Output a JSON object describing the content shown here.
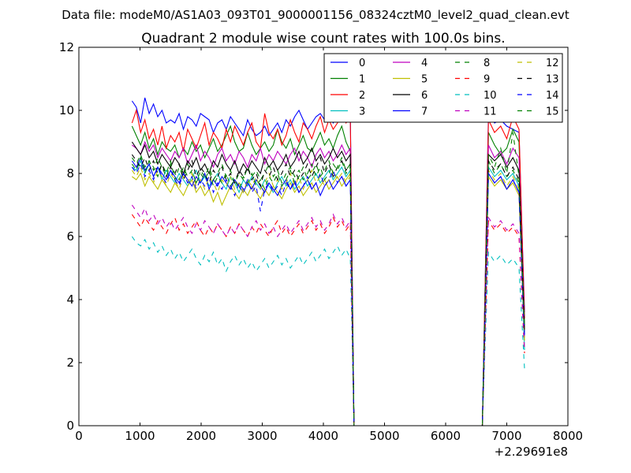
{
  "chart_data": {
    "type": "line",
    "suptitle": "Data file: modeM0/AS1A03_093T01_9000001156_08324cztM0_level2_quad_clean.evt",
    "title": "Quadrant 2 module wise count rates with 100.0s bins.",
    "xlabel": "",
    "ylabel": "",
    "x_offset_label": "+2.29691e8",
    "xlim": [
      0,
      8000
    ],
    "ylim": [
      0,
      12
    ],
    "xticks": [
      0,
      1000,
      2000,
      3000,
      4000,
      5000,
      6000,
      7000,
      8000
    ],
    "yticks": [
      0,
      2,
      4,
      6,
      8,
      10,
      12
    ],
    "grid": false,
    "legend_position": "top-right",
    "x": [
      870,
      940,
      1010,
      1080,
      1150,
      1220,
      1290,
      1360,
      1430,
      1500,
      1570,
      1640,
      1710,
      1780,
      1850,
      1920,
      1990,
      2060,
      2130,
      2200,
      2270,
      2340,
      2410,
      2480,
      2550,
      2620,
      2690,
      2760,
      2830,
      2900,
      2970,
      3040,
      3110,
      3180,
      3250,
      3320,
      3390,
      3460,
      3530,
      3600,
      3670,
      3740,
      3810,
      3880,
      3950,
      4020,
      4090,
      4160,
      4230,
      4300,
      4370,
      4440,
      4500,
      6600,
      6700,
      6800,
      6900,
      7000,
      7100,
      7200,
      7290
    ],
    "series": [
      {
        "name": "0",
        "color": "#0000ff",
        "dash": "solid",
        "values": [
          10.3,
          10.1,
          9.6,
          10.4,
          9.9,
          10.2,
          9.8,
          10.0,
          9.6,
          9.7,
          9.6,
          9.9,
          9.4,
          9.8,
          9.7,
          9.5,
          9.9,
          9.8,
          9.7,
          9.3,
          9.6,
          9.7,
          9.4,
          9.8,
          9.6,
          9.4,
          9.2,
          9.7,
          9.4,
          9.2,
          9.3,
          9.5,
          9.2,
          9.4,
          9.6,
          9.3,
          9.7,
          9.5,
          9.8,
          10.0,
          9.7,
          9.4,
          9.6,
          9.8,
          9.9,
          9.7,
          9.9,
          9.6,
          9.8,
          10.0,
          9.9,
          10.0,
          0,
          0,
          9.9,
          9.6,
          9.7,
          9.5,
          9.4,
          9.3,
          3.6
        ]
      },
      {
        "name": "1",
        "color": "#008000",
        "dash": "solid",
        "values": [
          9.5,
          9.2,
          8.9,
          9.3,
          8.8,
          9.1,
          8.6,
          9.0,
          8.8,
          8.7,
          8.9,
          8.5,
          8.8,
          8.6,
          9.0,
          8.7,
          8.9,
          8.5,
          8.8,
          9.1,
          8.7,
          8.9,
          9.2,
          9.5,
          9.0,
          8.7,
          8.8,
          9.3,
          8.9,
          8.6,
          8.8,
          9.0,
          8.7,
          8.9,
          9.4,
          9.0,
          8.8,
          9.1,
          8.6,
          8.9,
          9.2,
          8.8,
          8.7,
          9.0,
          9.3,
          8.9,
          9.1,
          8.8,
          9.2,
          9.5,
          9.0,
          8.7,
          0,
          0,
          9.3,
          8.9,
          8.6,
          8.8,
          9.4,
          9.0,
          3.2
        ]
      },
      {
        "name": "2",
        "color": "#ff0000",
        "dash": "solid",
        "values": [
          9.6,
          10.0,
          9.3,
          9.7,
          9.1,
          9.4,
          8.9,
          9.5,
          8.8,
          9.2,
          9.0,
          9.3,
          8.7,
          9.4,
          9.1,
          8.8,
          9.2,
          9.6,
          8.9,
          9.3,
          9.1,
          8.8,
          9.4,
          9.0,
          9.5,
          9.2,
          8.9,
          9.3,
          9.6,
          9.0,
          8.8,
          9.9,
          9.3,
          9.1,
          9.4,
          8.9,
          9.2,
          9.7,
          9.3,
          9.0,
          9.6,
          9.4,
          9.1,
          9.5,
          9.8,
          9.3,
          9.7,
          9.4,
          9.6,
          9.9,
          9.6,
          9.8,
          0,
          0,
          9.7,
          9.3,
          9.5,
          9.1,
          9.8,
          9.4,
          3.4
        ]
      },
      {
        "name": "3",
        "color": "#00bfbf",
        "dash": "solid",
        "values": [
          8.2,
          8.1,
          8.4,
          8.0,
          8.3,
          7.9,
          8.2,
          7.8,
          8.1,
          7.9,
          7.7,
          8.0,
          7.8,
          7.6,
          7.9,
          8.1,
          7.7,
          7.9,
          7.6,
          7.8,
          8.0,
          7.7,
          7.5,
          7.9,
          7.7,
          7.4,
          7.8,
          7.6,
          7.9,
          7.7,
          7.5,
          7.8,
          7.6,
          7.4,
          7.7,
          7.9,
          7.6,
          7.8,
          7.5,
          7.7,
          7.9,
          7.6,
          7.8,
          8.0,
          7.7,
          7.9,
          8.1,
          7.8,
          8.0,
          8.2,
          7.9,
          8.1,
          0,
          0,
          8.2,
          7.9,
          8.1,
          7.8,
          8.0,
          7.6,
          2.4
        ]
      },
      {
        "name": "4",
        "color": "#bf00bf",
        "dash": "solid",
        "values": [
          8.9,
          8.8,
          8.6,
          9.0,
          8.7,
          8.9,
          8.5,
          8.8,
          8.6,
          8.4,
          8.7,
          8.5,
          8.8,
          8.3,
          8.6,
          8.9,
          8.4,
          8.7,
          8.5,
          8.2,
          8.6,
          8.8,
          8.4,
          8.6,
          8.3,
          8.7,
          8.5,
          8.2,
          8.6,
          8.4,
          8.8,
          8.3,
          8.6,
          8.4,
          8.7,
          8.5,
          8.3,
          8.6,
          8.8,
          8.4,
          8.7,
          8.5,
          8.2,
          8.6,
          8.8,
          8.5,
          8.7,
          8.4,
          8.6,
          8.9,
          8.6,
          8.8,
          0,
          0,
          8.9,
          8.5,
          8.7,
          8.3,
          8.8,
          8.5,
          2.9
        ]
      },
      {
        "name": "5",
        "color": "#bfbf00",
        "dash": "solid",
        "values": [
          7.9,
          7.8,
          8.0,
          7.6,
          7.9,
          7.7,
          7.5,
          7.8,
          7.6,
          7.4,
          7.7,
          7.5,
          7.3,
          7.6,
          7.8,
          7.4,
          7.6,
          7.3,
          7.5,
          7.1,
          7.4,
          7.0,
          7.3,
          7.6,
          7.4,
          7.2,
          7.5,
          7.3,
          7.6,
          7.4,
          7.2,
          7.5,
          7.3,
          7.6,
          7.4,
          7.2,
          7.5,
          7.7,
          7.4,
          7.6,
          7.3,
          7.5,
          7.7,
          7.4,
          7.6,
          7.8,
          7.5,
          7.7,
          7.9,
          7.6,
          7.8,
          8.0,
          0,
          0,
          7.9,
          7.6,
          7.8,
          7.5,
          7.7,
          7.3,
          2.7
        ]
      },
      {
        "name": "6",
        "color": "#000000",
        "dash": "solid",
        "values": [
          9.0,
          8.8,
          8.6,
          8.9,
          8.5,
          8.7,
          8.3,
          8.6,
          8.4,
          8.2,
          8.5,
          8.3,
          8.0,
          8.4,
          8.2,
          8.5,
          8.1,
          8.3,
          8.0,
          8.4,
          8.2,
          8.6,
          8.3,
          8.1,
          8.4,
          8.0,
          8.3,
          8.1,
          8.4,
          8.2,
          8.0,
          8.5,
          8.2,
          8.4,
          8.1,
          8.3,
          8.6,
          8.2,
          8.4,
          8.7,
          8.3,
          8.5,
          8.8,
          8.4,
          8.6,
          8.3,
          8.5,
          8.8,
          8.5,
          8.7,
          8.4,
          8.6,
          0,
          0,
          8.6,
          8.4,
          8.6,
          8.2,
          8.5,
          8.1,
          3.0
        ]
      },
      {
        "name": "7",
        "color": "#0000ff",
        "dash": "solid",
        "values": [
          8.4,
          8.2,
          8.5,
          8.1,
          8.3,
          7.9,
          8.2,
          8.0,
          7.8,
          8.1,
          7.9,
          7.7,
          8.0,
          7.8,
          7.6,
          7.9,
          7.7,
          8.0,
          7.5,
          7.8,
          7.6,
          7.9,
          7.7,
          7.5,
          7.8,
          7.6,
          7.4,
          7.7,
          7.5,
          7.8,
          7.6,
          7.4,
          7.7,
          7.5,
          7.3,
          7.6,
          7.8,
          7.5,
          7.7,
          7.4,
          7.6,
          7.8,
          7.5,
          7.7,
          7.3,
          7.6,
          7.8,
          7.5,
          7.7,
          7.9,
          7.6,
          7.8,
          0,
          0,
          8.0,
          7.7,
          7.9,
          7.5,
          7.8,
          7.4,
          2.8
        ]
      },
      {
        "name": "8",
        "color": "#008000",
        "dash": "dashed",
        "values": [
          8.3,
          8.1,
          8.5,
          8.0,
          8.4,
          8.2,
          7.9,
          8.3,
          8.0,
          8.4,
          7.8,
          8.2,
          7.9,
          8.3,
          8.0,
          7.7,
          8.1,
          7.9,
          8.2,
          7.8,
          8.0,
          8.3,
          7.9,
          8.1,
          7.7,
          8.0,
          7.8,
          8.2,
          7.9,
          8.1,
          7.8,
          8.0,
          8.3,
          7.9,
          8.1,
          7.7,
          8.0,
          8.2,
          7.9,
          8.1,
          7.8,
          8.0,
          8.3,
          7.9,
          8.2,
          7.8,
          8.0,
          8.3,
          8.1,
          8.4,
          8.0,
          8.2,
          0,
          0,
          8.4,
          8.0,
          8.3,
          7.9,
          8.1,
          7.7,
          2.9
        ]
      },
      {
        "name": "9",
        "color": "#ff0000",
        "dash": "dashed",
        "values": [
          6.7,
          6.5,
          6.3,
          6.6,
          6.4,
          6.2,
          6.5,
          6.3,
          6.1,
          6.4,
          6.6,
          6.2,
          6.4,
          6.1,
          6.3,
          6.5,
          6.2,
          6.0,
          6.3,
          6.1,
          6.4,
          6.2,
          6.0,
          6.3,
          6.1,
          6.4,
          6.2,
          6.0,
          6.3,
          6.1,
          6.4,
          6.2,
          6.0,
          6.3,
          6.5,
          6.1,
          6.3,
          6.0,
          6.2,
          6.4,
          6.1,
          6.3,
          6.5,
          6.2,
          6.4,
          6.1,
          6.3,
          6.6,
          6.3,
          6.5,
          6.2,
          6.4,
          0,
          0,
          6.5,
          6.2,
          6.4,
          6.1,
          6.3,
          6.0,
          2.3
        ]
      },
      {
        "name": "10",
        "color": "#00bfbf",
        "dash": "dashed",
        "values": [
          6.0,
          5.8,
          5.7,
          5.9,
          5.6,
          5.8,
          5.5,
          5.7,
          5.4,
          5.6,
          5.3,
          5.5,
          5.2,
          5.4,
          5.6,
          5.3,
          5.1,
          5.4,
          5.2,
          5.5,
          5.1,
          5.3,
          4.9,
          5.2,
          5.4,
          5.1,
          5.3,
          5.0,
          5.2,
          4.9,
          5.1,
          5.3,
          5.0,
          5.2,
          5.4,
          5.1,
          5.3,
          5.0,
          5.2,
          5.4,
          5.1,
          5.3,
          5.5,
          5.2,
          5.4,
          5.6,
          5.3,
          5.5,
          5.7,
          5.4,
          5.6,
          5.3,
          0,
          0,
          5.5,
          5.2,
          5.4,
          5.1,
          5.3,
          5.0,
          1.8
        ]
      },
      {
        "name": "11",
        "color": "#bf00bf",
        "dash": "dashed",
        "values": [
          7.0,
          6.8,
          6.6,
          6.9,
          6.5,
          6.7,
          6.4,
          6.6,
          6.3,
          6.5,
          6.2,
          6.4,
          6.6,
          6.3,
          6.1,
          6.4,
          6.2,
          6.5,
          6.3,
          6.1,
          6.4,
          6.2,
          6.0,
          6.3,
          6.1,
          6.4,
          6.2,
          6.0,
          6.3,
          6.5,
          6.2,
          6.4,
          6.1,
          6.3,
          6.0,
          6.2,
          6.4,
          6.1,
          6.3,
          6.5,
          6.2,
          6.4,
          6.6,
          6.3,
          6.5,
          6.2,
          6.4,
          6.7,
          6.4,
          6.6,
          6.3,
          6.5,
          0,
          0,
          6.6,
          6.3,
          6.5,
          6.2,
          6.4,
          6.1,
          2.4
        ]
      },
      {
        "name": "12",
        "color": "#bfbf00",
        "dash": "dashed",
        "values": [
          8.1,
          7.9,
          8.2,
          7.8,
          8.0,
          7.7,
          8.1,
          7.9,
          7.6,
          8.0,
          7.8,
          7.5,
          7.9,
          7.7,
          8.0,
          7.6,
          7.8,
          7.5,
          7.9,
          7.7,
          7.4,
          7.8,
          7.6,
          7.9,
          7.5,
          7.7,
          7.4,
          7.8,
          7.6,
          7.9,
          7.5,
          7.7,
          8.0,
          7.6,
          7.8,
          7.5,
          7.7,
          8.0,
          7.6,
          7.9,
          7.5,
          7.8,
          8.1,
          7.7,
          7.9,
          7.6,
          7.8,
          8.1,
          7.8,
          8.0,
          7.7,
          7.9,
          0,
          0,
          8.1,
          7.8,
          8.0,
          7.6,
          7.9,
          7.5,
          2.8
        ]
      },
      {
        "name": "13",
        "color": "#000000",
        "dash": "dashed",
        "values": [
          8.6,
          8.4,
          8.2,
          8.5,
          8.1,
          8.4,
          8.0,
          8.3,
          7.9,
          8.2,
          8.0,
          8.3,
          7.8,
          8.1,
          8.4,
          7.9,
          8.2,
          8.0,
          7.7,
          8.1,
          7.9,
          8.2,
          7.8,
          8.0,
          7.7,
          8.1,
          7.9,
          8.2,
          7.8,
          8.0,
          7.6,
          8.1,
          7.9,
          8.2,
          7.8,
          8.0,
          8.3,
          7.9,
          8.1,
          7.8,
          8.0,
          8.3,
          7.9,
          8.2,
          8.5,
          8.0,
          8.3,
          7.9,
          8.2,
          8.4,
          8.1,
          8.3,
          0,
          0,
          8.4,
          8.1,
          8.3,
          7.9,
          8.2,
          7.8,
          3.0
        ]
      },
      {
        "name": "14",
        "color": "#0000ff",
        "dash": "dashed",
        "values": [
          8.2,
          8.0,
          8.3,
          7.9,
          8.1,
          7.8,
          8.2,
          7.9,
          7.7,
          8.1,
          7.8,
          7.6,
          8.0,
          7.7,
          7.9,
          7.5,
          7.8,
          7.6,
          7.9,
          7.4,
          7.7,
          7.5,
          7.8,
          7.6,
          7.3,
          7.7,
          7.5,
          7.8,
          7.4,
          7.6,
          6.8,
          7.5,
          7.7,
          7.4,
          7.6,
          7.3,
          7.7,
          7.5,
          7.8,
          7.4,
          7.6,
          7.9,
          7.5,
          7.7,
          8.0,
          7.6,
          7.8,
          8.1,
          7.7,
          7.9,
          7.6,
          7.8,
          0,
          0,
          8.0,
          7.7,
          7.9,
          7.5,
          7.8,
          7.4,
          2.9
        ]
      },
      {
        "name": "15",
        "color": "#008000",
        "dash": "dashed",
        "values": [
          8.5,
          8.3,
          8.6,
          8.2,
          8.4,
          8.1,
          8.5,
          8.2,
          7.9,
          8.3,
          8.0,
          7.8,
          8.2,
          7.9,
          8.1,
          7.7,
          8.0,
          7.8,
          8.1,
          7.6,
          7.9,
          7.7,
          8.0,
          7.6,
          7.8,
          7.5,
          7.9,
          7.7,
          8.0,
          7.6,
          7.8,
          7.5,
          7.9,
          7.7,
          8.0,
          7.6,
          7.8,
          8.1,
          7.7,
          7.9,
          8.2,
          7.8,
          8.0,
          8.3,
          7.9,
          8.1,
          8.4,
          8.0,
          8.2,
          8.5,
          8.1,
          8.3,
          0,
          0,
          8.6,
          8.2,
          8.8,
          8.0,
          9.3,
          7.9,
          3.1
        ]
      }
    ]
  }
}
